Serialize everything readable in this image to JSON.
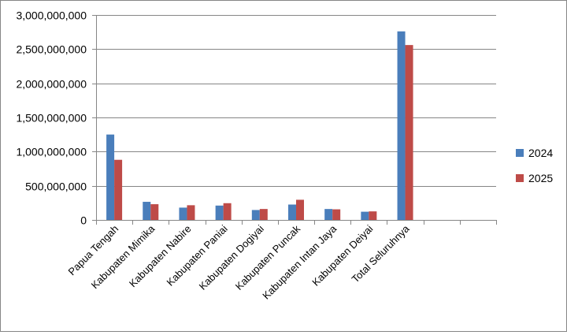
{
  "chart_data": {
    "type": "bar",
    "title": "",
    "xlabel": "",
    "ylabel": "",
    "categories": [
      "Papua Tengah",
      "Kabupaten Mimika",
      "Kabupaten Nabire",
      "Kabupaten Paniai",
      "Kabupaten Dogiyai",
      "Kabupaten Puncak",
      "Kabupaten Intan Jaya",
      "Kabupaten Deiyai",
      "Total Seluruhnya",
      "",
      ""
    ],
    "series": [
      {
        "name": "2024",
        "color": "#4a7ebb",
        "values": [
          1250000000,
          265000000,
          180000000,
          210000000,
          145000000,
          225000000,
          160000000,
          120000000,
          2760000000,
          null,
          null
        ]
      },
      {
        "name": "2025",
        "color": "#be4b48",
        "values": [
          880000000,
          230000000,
          215000000,
          245000000,
          160000000,
          295000000,
          155000000,
          125000000,
          2560000000,
          null,
          null
        ]
      }
    ],
    "ylim": [
      0,
      3000000000
    ],
    "yticks": [
      0,
      500000000,
      1000000000,
      1500000000,
      2000000000,
      2500000000,
      3000000000
    ],
    "ytick_labels": [
      "0",
      "500,000,000",
      "1,000,000,000",
      "1,500,000,000",
      "2,000,000,000",
      "2,500,000,000",
      "3,000,000,000"
    ],
    "grid": true,
    "legend_position": "right"
  }
}
